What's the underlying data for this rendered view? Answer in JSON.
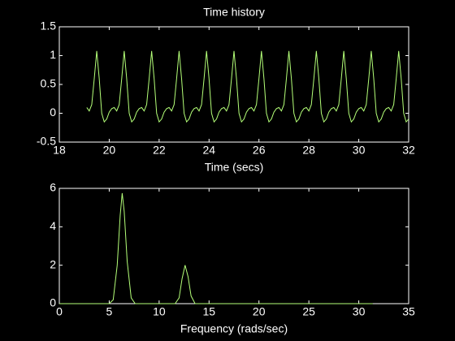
{
  "chart_data": [
    {
      "type": "line",
      "title": "Time history",
      "xlabel": "Time (secs)",
      "xlim": [
        18,
        32
      ],
      "xticks": [
        18,
        20,
        22,
        24,
        26,
        28,
        30,
        32
      ],
      "ylim": [
        -0.5,
        1.5
      ],
      "yticks": [
        -0.5,
        0,
        0.5,
        1,
        1.5
      ],
      "series": [
        {
          "color": "#b4ff78",
          "x": [
            19.1,
            19.2,
            19.3,
            19.4,
            19.5,
            19.6,
            19.7,
            19.8,
            19.9,
            20.0,
            20.1,
            20.2,
            20.3,
            20.4,
            20.5,
            20.6,
            20.7,
            20.8,
            20.9,
            21.0,
            21.1,
            21.2,
            21.3,
            21.4,
            21.5,
            21.6,
            21.7,
            21.8,
            21.9,
            22.0,
            22.1,
            22.2,
            22.3,
            22.4,
            22.5,
            22.6,
            22.7,
            22.8,
            22.9,
            23.0,
            23.1,
            23.2,
            23.3,
            23.4,
            23.5,
            23.6,
            23.7,
            23.8,
            23.9,
            24.0,
            24.1,
            24.2,
            24.3,
            24.4,
            24.5,
            24.6,
            24.7,
            24.8,
            24.9,
            25.0,
            25.1,
            25.2,
            25.3,
            25.4,
            25.5,
            25.6,
            25.7,
            25.8,
            25.9,
            26.0,
            26.1,
            26.2,
            26.3,
            26.4,
            26.5,
            26.6,
            26.7,
            26.8,
            26.9,
            27.0,
            27.1,
            27.2,
            27.3,
            27.4,
            27.5,
            27.6,
            27.7,
            27.8,
            27.9,
            28.0,
            28.1,
            28.2,
            28.3,
            28.4,
            28.5,
            28.6,
            28.7,
            28.8,
            28.9,
            29.0,
            29.1,
            29.2,
            29.3,
            29.4,
            29.5,
            29.6,
            29.7,
            29.8,
            29.9,
            30.0,
            30.1,
            30.2,
            30.3,
            30.4,
            30.5,
            30.6,
            30.7,
            30.8,
            30.9,
            31.0,
            31.1,
            31.2,
            31.3,
            31.4,
            31.5,
            31.6,
            31.7,
            31.8,
            31.9,
            32.0
          ],
          "values": [
            0.1,
            0.04,
            0.15,
            0.6,
            1.08,
            0.6,
            0,
            -0.15,
            -0.1,
            0.02,
            0.08,
            0.1,
            0.04,
            0.15,
            0.6,
            1.08,
            0.6,
            0,
            -0.15,
            -0.1,
            0.02,
            0.08,
            0.1,
            0.04,
            0.15,
            0.6,
            1.08,
            0.6,
            0,
            -0.15,
            -0.1,
            0.02,
            0.08,
            0.1,
            0.04,
            0.15,
            0.6,
            1.08,
            0.6,
            0,
            -0.15,
            -0.1,
            0.02,
            0.08,
            0.1,
            0.04,
            0.15,
            0.6,
            1.08,
            0.6,
            0,
            -0.15,
            -0.1,
            0.02,
            0.08,
            0.1,
            0.04,
            0.15,
            0.6,
            1.08,
            0.6,
            0,
            -0.15,
            -0.1,
            0.02,
            0.08,
            0.1,
            0.04,
            0.15,
            0.6,
            1.08,
            0.6,
            0,
            -0.15,
            -0.1,
            0.02,
            0.08,
            0.1,
            0.04,
            0.15,
            0.6,
            1.08,
            0.6,
            0,
            -0.15,
            -0.1,
            0.02,
            0.08,
            0.1,
            0.04,
            0.15,
            0.6,
            1.08,
            0.6,
            0,
            -0.15,
            -0.1,
            0.02,
            0.08,
            0.1,
            0.04,
            0.15,
            0.6,
            1.08,
            0.6,
            0,
            -0.15,
            -0.1,
            0.02,
            0.08,
            0.1,
            0.04,
            0.15,
            0.6,
            1.08,
            0.6,
            0,
            -0.15,
            -0.1,
            0.02,
            0.08,
            0.1,
            0.04,
            0.15,
            0.6,
            1.08,
            0.6,
            0,
            -0.15,
            -0.1
          ]
        }
      ]
    },
    {
      "type": "line",
      "xlabel": "Frequency (rads/sec)",
      "xlim": [
        0,
        35
      ],
      "xticks": [
        0,
        5,
        10,
        15,
        20,
        25,
        30,
        35
      ],
      "ylim": [
        0,
        6
      ],
      "yticks": [
        0,
        2,
        4,
        6
      ],
      "series": [
        {
          "color": "#b4ff78",
          "x": [
            0,
            5.0,
            5.4,
            5.8,
            6.1,
            6.3,
            6.5,
            6.8,
            7.2,
            7.6,
            11.6,
            12.0,
            12.3,
            12.6,
            12.9,
            13.2,
            13.6,
            31.4
          ],
          "values": [
            0,
            0,
            0.2,
            2.0,
            4.6,
            5.75,
            4.8,
            2.2,
            0.3,
            0,
            0,
            0.3,
            1.3,
            2.0,
            1.4,
            0.4,
            0,
            0
          ]
        }
      ]
    }
  ]
}
